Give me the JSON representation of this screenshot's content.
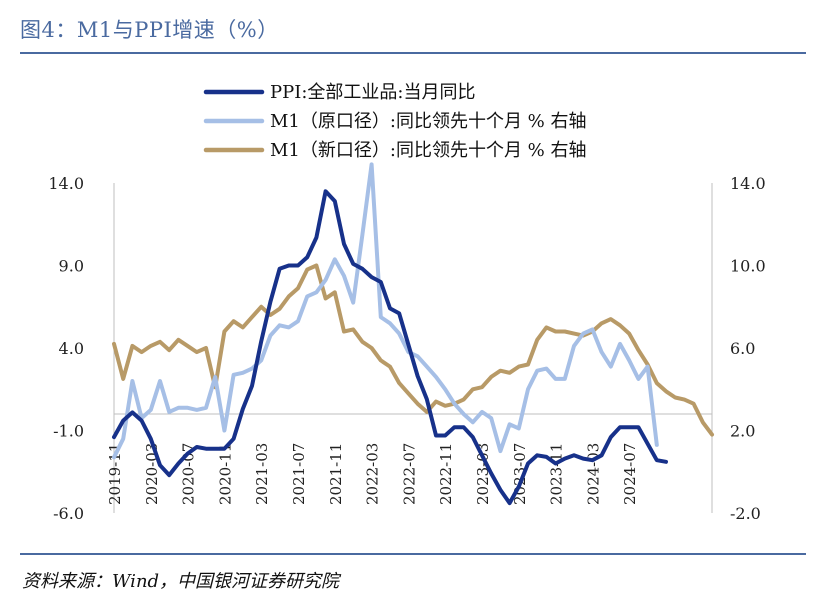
{
  "figure_title": "图4：M1与PPI增速（%）",
  "source": "资料来源：Wind，中国银河证券研究院",
  "chart_data": {
    "type": "line",
    "left_axis": {
      "ylim": [
        -6.0,
        14.0
      ],
      "ticks": [
        "14.0",
        "9.0",
        "4.0",
        "-1.0",
        "-6.0"
      ]
    },
    "right_axis": {
      "ylim": [
        -2.0,
        14.0
      ],
      "ticks": [
        "14.0",
        "10.0",
        "6.0",
        "2.0",
        "-2.0"
      ]
    },
    "x_ticks": [
      "2019-11",
      "2020-03",
      "2020-07",
      "2020-11",
      "2021-03",
      "2021-07",
      "2021-11",
      "2022-03",
      "2022-07",
      "2022-11",
      "2023-03",
      "2023-07",
      "2023-11",
      "2024-03",
      "2024-07"
    ],
    "legend_position": "top",
    "grid": false,
    "series": [
      {
        "name": "PPI:全部工业品:当月同比",
        "axis": "left",
        "color": "#17318a",
        "values": [
          -1.4,
          -0.4,
          0.1,
          -0.4,
          -1.5,
          -3.1,
          -3.7,
          -3.0,
          -2.4,
          -2.0,
          -2.1,
          -2.1,
          -2.1,
          -1.5,
          0.3,
          1.7,
          4.4,
          6.8,
          8.8,
          9.0,
          9.0,
          9.5,
          10.7,
          13.5,
          12.9,
          10.3,
          9.1,
          8.8,
          8.3,
          8.0,
          6.4,
          6.1,
          4.2,
          2.3,
          0.9,
          -1.3,
          -1.3,
          -0.8,
          -0.8,
          -1.4,
          -2.5,
          -3.6,
          -4.6,
          -5.4,
          -4.4,
          -3.0,
          -2.5,
          -2.6,
          -3.0,
          -2.7,
          -2.5,
          -2.7,
          -2.8,
          -2.5,
          -1.4,
          -0.8,
          -0.8,
          -0.8,
          -1.8,
          -2.8,
          -2.9
        ]
      },
      {
        "name": "M1（原口径）:同比领先十个月 % 右轴",
        "axis": "right",
        "color": "#a6bfe6",
        "values": [
          0.7,
          1.6,
          4.4,
          2.6,
          3.0,
          4.4,
          2.9,
          3.1,
          3.1,
          3.0,
          3.1,
          4.6,
          2.0,
          4.7,
          4.8,
          5.0,
          5.4,
          6.6,
          7.1,
          7.0,
          7.3,
          8.5,
          8.7,
          9.3,
          10.3,
          9.5,
          8.2,
          11.5,
          14.9,
          7.5,
          7.2,
          6.7,
          5.8,
          5.6,
          5.1,
          4.6,
          4.0,
          3.3,
          2.8,
          2.4,
          2.9,
          2.6,
          1.0,
          2.3,
          2.1,
          4.0,
          4.9,
          5.0,
          4.5,
          4.5,
          6.1,
          6.7,
          6.9,
          5.8,
          5.1,
          6.2,
          5.4,
          4.5,
          5.1,
          1.3
        ]
      },
      {
        "name": "M1（新口径）:同比领先十个月 % 右轴",
        "axis": "right",
        "color": "#b89a67",
        "values": [
          6.2,
          4.5,
          6.1,
          5.8,
          6.1,
          6.3,
          5.9,
          6.4,
          6.1,
          5.8,
          6.0,
          4.1,
          6.8,
          7.3,
          7.0,
          7.5,
          8.0,
          7.6,
          7.9,
          8.5,
          8.9,
          9.8,
          10.0,
          8.4,
          8.7,
          6.8,
          6.9,
          6.3,
          6.0,
          5.4,
          5.1,
          4.3,
          3.8,
          3.3,
          2.9,
          3.4,
          3.2,
          3.3,
          3.5,
          4.0,
          4.1,
          4.6,
          4.9,
          4.8,
          5.1,
          5.2,
          6.4,
          7.0,
          6.8,
          6.8,
          6.7,
          6.6,
          6.8,
          7.2,
          7.4,
          7.1,
          6.7,
          5.9,
          5.2,
          4.3,
          3.9,
          3.6,
          3.5,
          3.3,
          2.4,
          1.8
        ]
      }
    ]
  }
}
